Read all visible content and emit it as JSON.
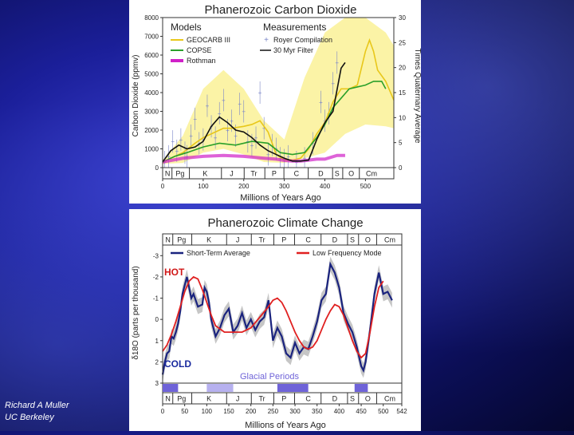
{
  "credit": {
    "line1": "Richard A Muller",
    "line2": "UC Berkeley"
  },
  "colors": {
    "geocarb": "#e8c71a",
    "copse": "#2aa02a",
    "rothman": "#d020c8",
    "royer": "#7b86c8",
    "filter": "#111111",
    "band": "#fbf3a6",
    "shortterm": "#1a237e",
    "lowfreq": "#e02020",
    "glacial": "#6f63d8"
  },
  "chart_data": [
    {
      "type": "line",
      "title": "Phanerozoic Carbon Dioxide",
      "xlabel": "Millions of Years Ago",
      "ylabel": "Carbon Dioxide (ppmv)",
      "ylabel_right": "Times Quaternary Average",
      "xlim": [
        0,
        570
      ],
      "ylim": [
        0,
        8000
      ],
      "ylim_right": [
        0,
        30
      ],
      "x_ticks": [
        0,
        100,
        200,
        300,
        400,
        500
      ],
      "y_ticks": [
        0,
        1000,
        2000,
        3000,
        4000,
        5000,
        6000,
        7000,
        8000
      ],
      "y_ticks_right": [
        0,
        5,
        10,
        15,
        20,
        25,
        30
      ],
      "legend_models_title": "Models",
      "legend_measure_title": "Measurements",
      "periods": [
        {
          "label": "N",
          "x": 12
        },
        {
          "label": "Pg",
          "x": 43
        },
        {
          "label": "K",
          "x": 105
        },
        {
          "label": "J",
          "x": 170
        },
        {
          "label": "Tr",
          "x": 225
        },
        {
          "label": "P",
          "x": 275
        },
        {
          "label": "C",
          "x": 330
        },
        {
          "label": "D",
          "x": 390
        },
        {
          "label": "S",
          "x": 430
        },
        {
          "label": "O",
          "x": 465
        },
        {
          "label": "Cm",
          "x": 515
        }
      ],
      "period_bounds": [
        23,
        66,
        145,
        201,
        252,
        299,
        359,
        419,
        444,
        485
      ],
      "band": {
        "x": [
          0,
          50,
          100,
          150,
          200,
          250,
          300,
          350,
          400,
          450,
          500,
          550,
          570
        ],
        "low": [
          200,
          250,
          800,
          1000,
          700,
          300,
          250,
          500,
          800,
          1800,
          2300,
          2200,
          2100
        ],
        "high": [
          400,
          1700,
          4200,
          5200,
          4200,
          2500,
          1500,
          4800,
          7200,
          8000,
          8000,
          7200,
          6500
        ]
      },
      "series": [
        {
          "name": "GEOCARB III",
          "x": [
            0,
            20,
            50,
            80,
            100,
            130,
            150,
            170,
            200,
            220,
            240,
            260,
            280,
            300,
            320,
            340,
            360,
            380,
            400,
            420,
            440,
            460,
            480,
            500,
            510,
            520,
            530,
            550,
            570
          ],
          "values": [
            280,
            500,
            800,
            1300,
            1600,
            1900,
            2100,
            2100,
            2200,
            2300,
            2500,
            1900,
            700,
            400,
            400,
            500,
            1000,
            1800,
            2400,
            3500,
            4200,
            4200,
            4400,
            6200,
            6800,
            6200,
            5200,
            4600,
            3600
          ]
        },
        {
          "name": "COPSE",
          "x": [
            0,
            30,
            60,
            100,
            140,
            180,
            220,
            260,
            290,
            320,
            350,
            380,
            400,
            420,
            440,
            460,
            480,
            500,
            520,
            540,
            550
          ],
          "values": [
            300,
            600,
            800,
            1100,
            1300,
            1200,
            1400,
            1300,
            800,
            700,
            800,
            1600,
            2300,
            3200,
            3700,
            4200,
            4300,
            4400,
            4600,
            4600,
            4200
          ]
        },
        {
          "name": "Rothman",
          "x": [
            0,
            50,
            100,
            150,
            200,
            250,
            280,
            300,
            320,
            340,
            360,
            380,
            400,
            430,
            450
          ],
          "values": [
            300,
            500,
            600,
            650,
            600,
            500,
            450,
            380,
            350,
            350,
            400,
            450,
            450,
            650,
            650
          ]
        },
        {
          "name": "30 Myr Filter",
          "x": [
            0,
            20,
            40,
            60,
            80,
            100,
            120,
            140,
            160,
            180,
            200,
            220,
            240,
            260,
            280,
            300,
            320,
            340,
            360,
            380,
            400,
            420,
            440,
            450
          ],
          "values": [
            300,
            900,
            1200,
            1000,
            1100,
            1400,
            2200,
            2700,
            2400,
            2000,
            1900,
            1600,
            1200,
            900,
            700,
            500,
            350,
            350,
            400,
            1500,
            2400,
            3000,
            5300,
            5600
          ]
        }
      ],
      "scatter_name": "Royer Compilation",
      "scatter": {
        "x": [
          5,
          15,
          25,
          35,
          45,
          55,
          60,
          70,
          80,
          90,
          100,
          110,
          120,
          130,
          140,
          150,
          160,
          170,
          180,
          190,
          200,
          210,
          220,
          230,
          240,
          250,
          260,
          270,
          280,
          290,
          300,
          310,
          330,
          350,
          370,
          390,
          400,
          410,
          420,
          430
        ],
        "values": [
          300,
          600,
          1400,
          900,
          1500,
          800,
          600,
          1700,
          2600,
          1300,
          1500,
          3300,
          2200,
          1600,
          2900,
          3600,
          2000,
          2500,
          1700,
          3400,
          3000,
          1400,
          1200,
          1600,
          4000,
          2100,
          700,
          1200,
          1000,
          500,
          400,
          600,
          300,
          500,
          1300,
          3500,
          2500,
          2900,
          4500,
          5600
        ]
      }
    },
    {
      "type": "line",
      "title": "Phanerozoic Climate Change",
      "xlabel": "Millions of Years Ago",
      "ylabel": "δ18O (parts per thousand)",
      "xlim": [
        0,
        542
      ],
      "ylim": [
        3,
        -3.5
      ],
      "x_ticks": [
        0,
        50,
        100,
        150,
        200,
        250,
        300,
        350,
        400,
        450,
        500,
        542
      ],
      "y_ticks": [
        3,
        2,
        1,
        0,
        -1,
        -2,
        -3
      ],
      "periods": [
        {
          "label": "N",
          "x": 12
        },
        {
          "label": "Pg",
          "x": 43
        },
        {
          "label": "K",
          "x": 105
        },
        {
          "label": "J",
          "x": 170
        },
        {
          "label": "Tr",
          "x": 225
        },
        {
          "label": "P",
          "x": 275
        },
        {
          "label": "C",
          "x": 330
        },
        {
          "label": "D",
          "x": 390
        },
        {
          "label": "S",
          "x": 430
        },
        {
          "label": "O",
          "x": 465
        },
        {
          "label": "Cm",
          "x": 515
        }
      ],
      "period_bounds": [
        23,
        66,
        145,
        201,
        252,
        299,
        359,
        419,
        444,
        485
      ],
      "hot_label": "HOT",
      "cold_label": "COLD",
      "glacial_label": "Glacial Periods",
      "glacial_periods": [
        [
          0,
          35
        ],
        [
          100,
          160
        ],
        [
          260,
          330
        ],
        [
          435,
          465
        ]
      ],
      "series": [
        {
          "name": "Short-Term Average",
          "x": [
            0,
            5,
            10,
            15,
            20,
            25,
            30,
            35,
            40,
            45,
            50,
            55,
            60,
            65,
            70,
            80,
            90,
            95,
            100,
            105,
            110,
            120,
            130,
            140,
            150,
            160,
            170,
            180,
            190,
            200,
            210,
            220,
            230,
            240,
            250,
            260,
            270,
            280,
            290,
            300,
            310,
            320,
            330,
            340,
            350,
            360,
            370,
            380,
            390,
            400,
            410,
            420,
            430,
            440,
            450,
            455,
            460,
            470,
            480,
            490,
            500,
            510,
            520
          ],
          "values": [
            2.6,
            2.0,
            1.6,
            1.5,
            0.8,
            0.9,
            0.6,
            0.2,
            -0.4,
            -1.2,
            -1.6,
            -2.0,
            -1.5,
            -1.0,
            -1.2,
            -0.6,
            -0.7,
            -1.5,
            -1.3,
            -0.8,
            0.0,
            0.8,
            0.4,
            -0.2,
            -0.5,
            0.6,
            0.3,
            -0.3,
            0.4,
            0.0,
            0.5,
            0.1,
            -0.1,
            -0.9,
            1.0,
            0.4,
            0.8,
            1.6,
            1.8,
            1.1,
            1.6,
            1.3,
            1.4,
            0.8,
            0.1,
            -0.9,
            -1.2,
            -2.6,
            -2.2,
            -1.5,
            -0.3,
            0.2,
            0.6,
            1.3,
            2.2,
            2.4,
            2.0,
            0.5,
            -1.2,
            -2.2,
            -1.2,
            -1.3,
            -0.9
          ]
        },
        {
          "name": "Low Frequency Mode",
          "x": [
            0,
            10,
            20,
            30,
            40,
            50,
            60,
            70,
            80,
            90,
            100,
            110,
            120,
            140,
            160,
            180,
            200,
            220,
            240,
            250,
            260,
            270,
            280,
            290,
            300,
            310,
            320,
            330,
            340,
            350,
            360,
            370,
            380,
            390,
            400,
            410,
            420,
            430,
            440,
            450,
            460,
            470,
            480,
            490,
            500
          ],
          "values": [
            1.5,
            1.2,
            0.7,
            0.1,
            -0.6,
            -1.3,
            -1.8,
            -2.0,
            -1.9,
            -1.4,
            -0.8,
            -0.2,
            0.3,
            0.6,
            0.6,
            0.6,
            0.4,
            -0.1,
            -0.6,
            -0.9,
            -1.0,
            -0.8,
            -0.4,
            0.1,
            0.6,
            1.0,
            1.3,
            1.4,
            1.3,
            1.0,
            0.5,
            0.0,
            -0.4,
            -0.7,
            -0.6,
            -0.2,
            0.4,
            1.0,
            1.5,
            1.8,
            1.6,
            0.6,
            -0.6,
            -1.5,
            -1.8
          ]
        }
      ]
    }
  ]
}
